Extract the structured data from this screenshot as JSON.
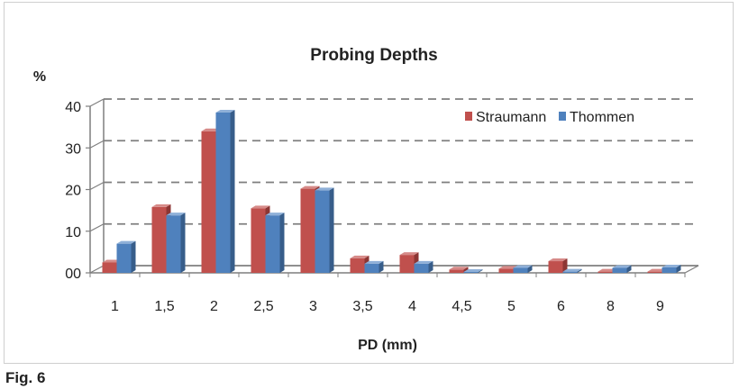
{
  "figure_label": "Fig. 6",
  "colors": {
    "series1_front": "#c0504d",
    "series1_side": "#8c3634",
    "series1_top": "#d68a88",
    "series2_front": "#4f81bd",
    "series2_side": "#375d8a",
    "series2_top": "#8fb0d8",
    "grid": "#7f7f7f",
    "text": "#222222"
  },
  "chart_data": {
    "type": "bar",
    "title": "Probing Depths",
    "ylabel": "%",
    "xlabel": "PD (mm)",
    "ylim": [
      0,
      40
    ],
    "yticks": [
      "00",
      "10",
      "20",
      "30",
      "40"
    ],
    "grid": true,
    "legend_position": "top-right",
    "categories": [
      "1",
      "1,5",
      "2",
      "2,5",
      "3",
      "3,5",
      "4",
      "4,5",
      "5",
      "6",
      "8",
      "9"
    ],
    "series": [
      {
        "name": "Straumann",
        "values": [
          2.5,
          15.8,
          34,
          15.5,
          20.2,
          3.5,
          4.3,
          0.8,
          1,
          2.8,
          0.3,
          0.3
        ]
      },
      {
        "name": "Thommen",
        "values": [
          7,
          13.8,
          38.5,
          13.8,
          19.8,
          2.2,
          2.2,
          0.2,
          1.2,
          0.3,
          1.2,
          1.3
        ]
      }
    ]
  }
}
